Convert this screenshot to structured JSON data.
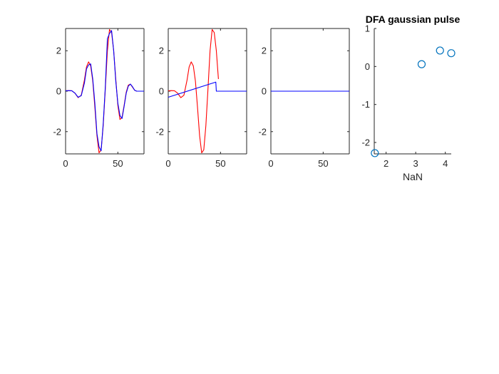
{
  "colors": {
    "red": "#ff0000",
    "blue": "#0000ff",
    "marker": "#0072bd",
    "axis": "#262626"
  },
  "chart_data": [
    {
      "type": "line",
      "title": "",
      "xlabel": "",
      "ylabel": "",
      "xlim": [
        0,
        75
      ],
      "ylim": [
        -3.1,
        3.1
      ],
      "xticks": [
        0,
        50
      ],
      "yticks": [
        -2,
        0,
        2
      ],
      "xtick_labels": [
        "0",
        "50"
      ],
      "ytick_labels": [
        "-2",
        "0",
        "2"
      ],
      "box": "top-right",
      "series": [
        {
          "color": "red",
          "x": [
            0,
            3,
            6,
            9,
            12,
            15,
            18,
            20,
            22,
            24,
            26,
            28,
            30,
            32,
            34,
            36,
            38,
            40,
            42,
            44,
            46,
            48,
            50,
            52,
            54,
            56,
            58,
            60,
            62,
            64,
            66,
            68,
            70,
            72,
            75
          ],
          "values": [
            0.02,
            0.03,
            0.02,
            -0.1,
            -0.32,
            -0.2,
            0.55,
            1.2,
            1.45,
            1.25,
            0.5,
            -0.8,
            -2.2,
            -3.05,
            -2.9,
            -1.7,
            0.1,
            2.0,
            3.05,
            2.9,
            2.0,
            0.6,
            -0.7,
            -1.4,
            -1.3,
            -0.7,
            -0.05,
            0.3,
            0.35,
            0.2,
            0.05,
            0.0,
            0.0,
            0.0,
            0.0
          ]
        },
        {
          "color": "blue",
          "x": [
            0,
            3,
            6,
            9,
            12,
            15,
            18,
            20,
            22,
            24,
            26,
            28,
            30,
            32,
            34,
            36,
            38,
            40,
            42,
            44,
            46,
            48,
            50,
            52,
            54,
            56,
            58,
            60,
            62,
            64,
            66,
            68,
            70,
            72,
            75
          ],
          "values": [
            0.02,
            0.03,
            0.02,
            -0.1,
            -0.3,
            -0.22,
            0.4,
            1.1,
            1.3,
            1.35,
            0.6,
            -0.6,
            -2.1,
            -2.75,
            -2.95,
            -1.6,
            0.2,
            2.6,
            2.85,
            3.0,
            2.0,
            0.5,
            -0.6,
            -1.2,
            -1.35,
            -0.75,
            -0.1,
            0.25,
            0.35,
            0.22,
            0.05,
            0.0,
            0.0,
            0.0,
            0.0
          ]
        }
      ]
    },
    {
      "type": "line",
      "title": "",
      "xlabel": "",
      "ylabel": "",
      "xlim": [
        0,
        75
      ],
      "ylim": [
        -3.1,
        3.1
      ],
      "xticks": [
        0,
        50
      ],
      "yticks": [
        -2,
        0,
        2
      ],
      "xtick_labels": [
        "0",
        "50"
      ],
      "ytick_labels": [
        "-2",
        "0",
        "2"
      ],
      "box": "top-right",
      "series": [
        {
          "color": "red",
          "x": [
            0,
            3,
            6,
            9,
            12,
            15,
            18,
            20,
            22,
            24,
            26,
            28,
            30,
            32,
            34,
            36,
            38,
            40,
            42,
            44,
            46,
            48
          ],
          "values": [
            0.02,
            0.03,
            0.02,
            -0.1,
            -0.32,
            -0.2,
            0.55,
            1.2,
            1.45,
            1.25,
            0.5,
            -0.8,
            -2.2,
            -3.05,
            -2.9,
            -1.7,
            0.1,
            2.0,
            3.05,
            2.9,
            2.0,
            0.6
          ]
        },
        {
          "color": "blue",
          "x": [
            0,
            45.5,
            46,
            75
          ],
          "values": [
            -0.3,
            0.45,
            0.0,
            0.0
          ]
        }
      ]
    },
    {
      "type": "line",
      "title": "",
      "xlabel": "",
      "ylabel": "",
      "xlim": [
        0,
        75
      ],
      "ylim": [
        -3.1,
        3.1
      ],
      "xticks": [
        0,
        50
      ],
      "yticks": [
        -2,
        0,
        2
      ],
      "xtick_labels": [
        "0",
        "50"
      ],
      "ytick_labels": [
        "-2",
        "0",
        "2"
      ],
      "box": "top-right",
      "series": [
        {
          "color": "blue",
          "x": [
            0,
            75
          ],
          "values": [
            0.0,
            0.0
          ]
        }
      ]
    },
    {
      "type": "scatter",
      "title": "DFA gaussian pulse",
      "xlabel": "NaN",
      "ylabel": "",
      "xlim": [
        1.6,
        4.2
      ],
      "ylim": [
        -2.3,
        1.0
      ],
      "xticks": [
        2,
        3,
        4
      ],
      "yticks": [
        -2,
        -1,
        0,
        1
      ],
      "xtick_labels": [
        "2",
        "3",
        "4"
      ],
      "ytick_labels": [
        "-2",
        "-1",
        "0",
        "1"
      ],
      "box": "none",
      "series": [
        {
          "color": "marker",
          "marker": "circle",
          "x": [
            1.62,
            3.2,
            3.82,
            4.2
          ],
          "values": [
            -2.28,
            0.06,
            0.42,
            0.35
          ]
        }
      ]
    }
  ]
}
